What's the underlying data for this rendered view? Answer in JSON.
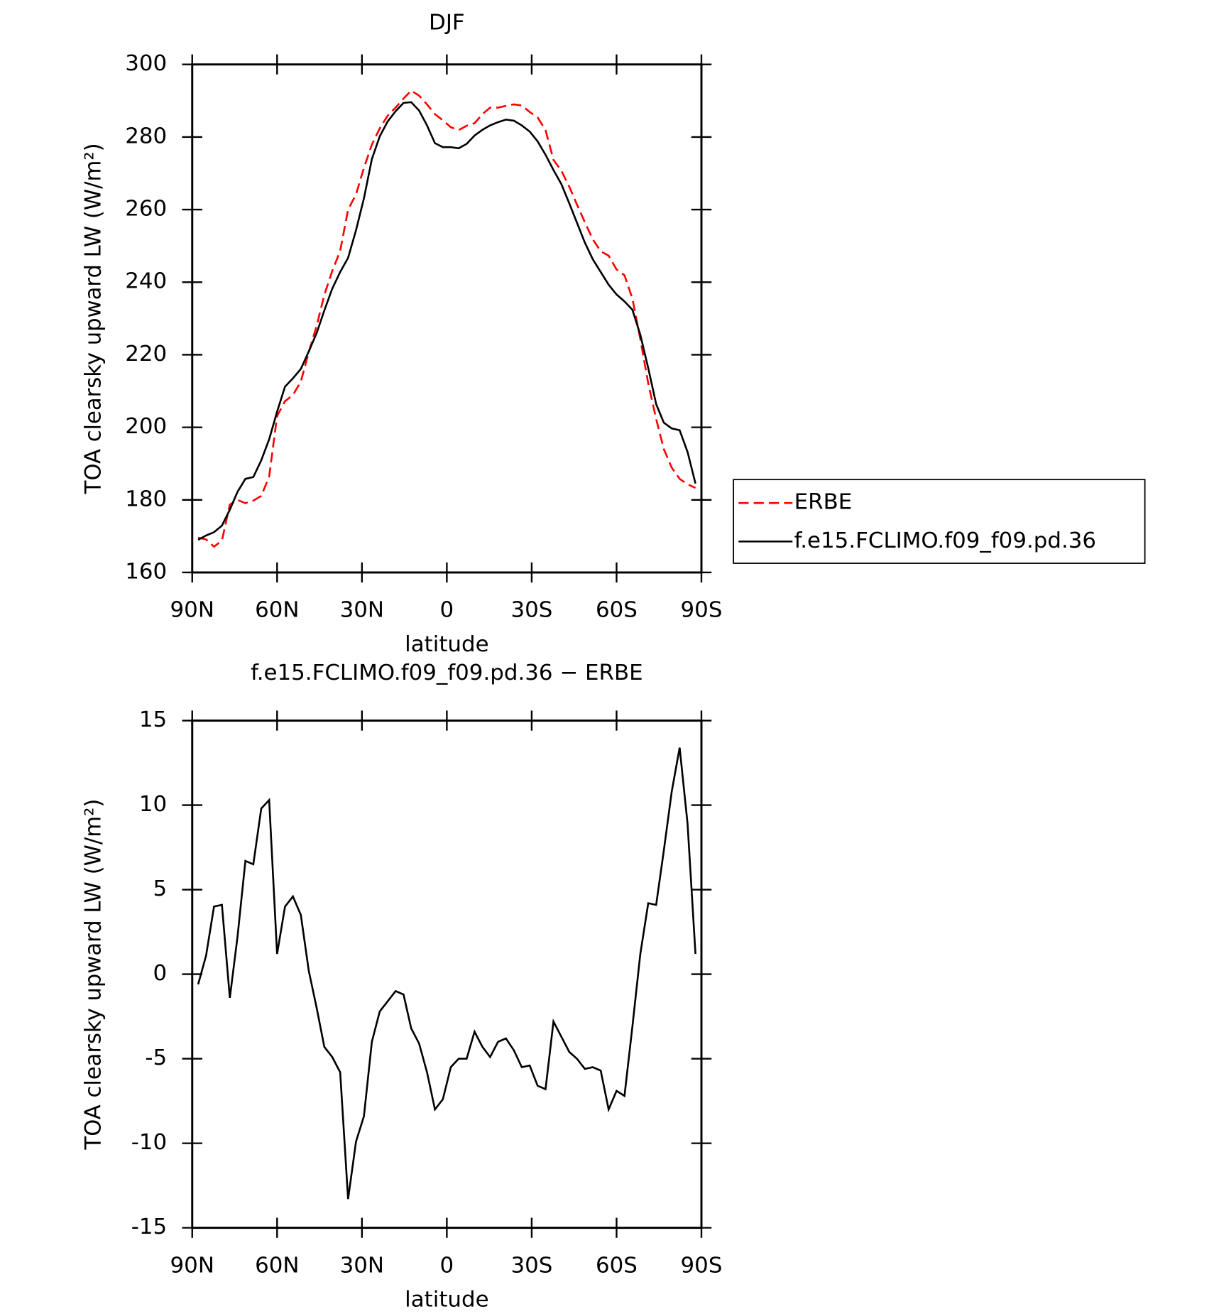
{
  "chart_data": [
    {
      "type": "line",
      "title": "DJF",
      "x_label": "latitude",
      "y_label": "TOA clearsky upward LW (W/m²)",
      "xlim": [
        90,
        -90
      ],
      "ylim": [
        160,
        300
      ],
      "xticks": [
        {
          "value": 90,
          "label": "90N"
        },
        {
          "value": 60,
          "label": "60N"
        },
        {
          "value": 30,
          "label": "30N"
        },
        0,
        {
          "value": -30,
          "label": "30S"
        },
        {
          "value": -60,
          "label": "60S"
        },
        {
          "value": -90,
          "label": "90S"
        }
      ],
      "yticks": [
        160,
        180,
        200,
        220,
        240,
        260,
        280,
        300
      ],
      "legend": "right",
      "x": [
        87.9,
        85.1,
        82.3,
        79.5,
        76.7,
        74.0,
        71.2,
        68.4,
        65.6,
        62.8,
        60.0,
        57.2,
        54.4,
        51.6,
        48.8,
        46.0,
        43.3,
        40.5,
        37.7,
        34.9,
        32.1,
        29.3,
        26.5,
        23.7,
        20.9,
        18.1,
        15.3,
        12.6,
        9.8,
        7.0,
        4.2,
        1.4,
        -1.4,
        -4.2,
        -7.0,
        -9.8,
        -12.6,
        -15.3,
        -18.1,
        -20.9,
        -23.7,
        -26.5,
        -29.3,
        -32.1,
        -34.9,
        -37.7,
        -40.5,
        -43.3,
        -46.0,
        -48.8,
        -51.6,
        -54.4,
        -57.2,
        -60.0,
        -62.8,
        -65.6,
        -68.4,
        -71.2,
        -74.0,
        -76.7,
        -79.5,
        -82.3,
        -85.1,
        -87.9
      ],
      "series": [
        {
          "name": "ERBE",
          "color": "#ff0000",
          "line_style": "dashed",
          "values": [
            169.6,
            169.1,
            167.1,
            168.8,
            178.7,
            180.0,
            179.1,
            179.8,
            181.1,
            186.4,
            203.1,
            207.2,
            208.9,
            212.6,
            220.7,
            228.0,
            236.5,
            243.1,
            248.6,
            260.0,
            264.2,
            271.5,
            277.9,
            282.4,
            285.9,
            288.1,
            290.6,
            292.8,
            291.4,
            289.0,
            286.3,
            284.6,
            282.7,
            281.9,
            283.1,
            283.8,
            286.3,
            288.1,
            288.1,
            288.6,
            289.0,
            288.7,
            286.9,
            285.4,
            281.9,
            273.7,
            270.7,
            266.3,
            261.4,
            256.5,
            251.8,
            248.5,
            247.3,
            243.5,
            241.9,
            235.5,
            224.3,
            212.1,
            202.3,
            194.0,
            188.9,
            185.8,
            184.3,
            183.3
          ]
        },
        {
          "name": "f.e15.FCLIMO.f09_f09.pd.36",
          "color": "#000000",
          "line_style": "solid",
          "values": [
            169.0,
            170.2,
            171.1,
            172.9,
            177.3,
            182.2,
            185.8,
            186.3,
            190.9,
            196.7,
            204.3,
            211.2,
            213.5,
            216.1,
            220.9,
            226.0,
            232.2,
            238.2,
            242.8,
            246.7,
            254.3,
            263.1,
            273.9,
            280.2,
            284.3,
            287.1,
            289.4,
            289.6,
            287.3,
            283.2,
            278.3,
            277.2,
            277.2,
            276.9,
            278.1,
            280.4,
            282.0,
            283.2,
            284.1,
            284.8,
            284.5,
            283.2,
            281.5,
            278.8,
            275.1,
            270.9,
            267.0,
            261.7,
            256.4,
            250.9,
            246.3,
            242.8,
            239.3,
            236.6,
            234.7,
            232.4,
            225.5,
            216.3,
            206.4,
            201.3,
            199.7,
            199.2,
            193.2,
            184.5
          ]
        }
      ]
    },
    {
      "type": "line",
      "title": "f.e15.FCLIMO.f09_f09.pd.36 − ERBE",
      "x_label": "latitude",
      "y_label": "TOA clearsky upward LW (W/m²)",
      "xlim": [
        90,
        -90
      ],
      "ylim": [
        -15,
        15
      ],
      "xticks": [
        {
          "value": 90,
          "label": "90N"
        },
        {
          "value": 60,
          "label": "60N"
        },
        {
          "value": 30,
          "label": "30N"
        },
        0,
        {
          "value": -30,
          "label": "30S"
        },
        {
          "value": -60,
          "label": "60S"
        },
        {
          "value": -90,
          "label": "90S"
        }
      ],
      "yticks": [
        -15,
        -10,
        -5,
        0,
        5,
        10,
        15
      ],
      "color": "#000000",
      "x": [
        87.9,
        85.1,
        82.3,
        79.5,
        76.7,
        74.0,
        71.2,
        68.4,
        65.6,
        62.8,
        60.0,
        57.2,
        54.4,
        51.6,
        48.8,
        46.0,
        43.3,
        40.5,
        37.7,
        34.9,
        32.1,
        29.3,
        26.5,
        23.7,
        20.9,
        18.1,
        15.3,
        12.6,
        9.8,
        7.0,
        4.2,
        1.4,
        -1.4,
        -4.2,
        -7.0,
        -9.8,
        -12.6,
        -15.3,
        -18.1,
        -20.9,
        -23.7,
        -26.5,
        -29.3,
        -32.1,
        -34.9,
        -37.7,
        -40.5,
        -43.3,
        -46.0,
        -48.8,
        -51.6,
        -54.4,
        -57.2,
        -60.0,
        -62.8,
        -65.6,
        -68.4,
        -71.2,
        -74.0,
        -76.7,
        -79.5,
        -82.3,
        -85.1,
        -87.9
      ],
      "values": [
        -0.6,
        1.1,
        4.0,
        4.1,
        -1.4,
        2.2,
        6.7,
        6.5,
        9.8,
        10.3,
        1.2,
        4.0,
        4.6,
        3.5,
        0.2,
        -2.0,
        -4.3,
        -4.9,
        -5.8,
        -13.3,
        -9.9,
        -8.4,
        -4.0,
        -2.2,
        -1.6,
        -1.0,
        -1.2,
        -3.2,
        -4.1,
        -5.8,
        -8.0,
        -7.4,
        -5.5,
        -5.0,
        -5.0,
        -3.4,
        -4.3,
        -4.9,
        -4.0,
        -3.8,
        -4.5,
        -5.5,
        -5.4,
        -6.6,
        -6.8,
        -2.8,
        -3.7,
        -4.6,
        -5.0,
        -5.6,
        -5.5,
        -5.7,
        -8.0,
        -6.9,
        -7.2,
        -3.1,
        1.2,
        4.2,
        4.1,
        7.3,
        10.8,
        13.4,
        8.9,
        1.2
      ]
    }
  ]
}
